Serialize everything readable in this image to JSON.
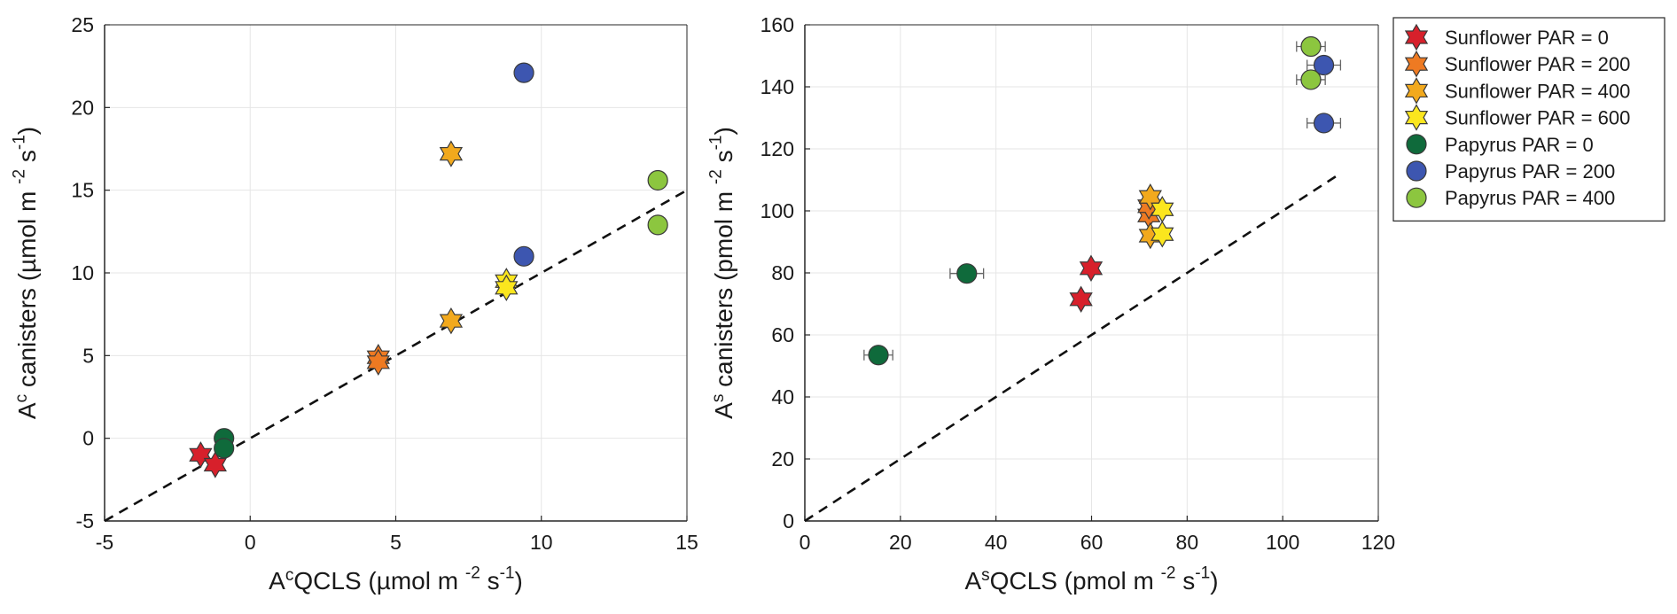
{
  "chart_data": [
    {
      "type": "scatter",
      "id": "left",
      "xlabel": "Aᶜ QCLS (µmol m⁻² s⁻¹)",
      "ylabel": "Aᶜ canisters (µmol m⁻² s⁻¹)",
      "xlabel_parts": {
        "base": "A",
        "sup": "c",
        "main": "QCLS (µmol m",
        "exp1": "-2",
        "mid": " s",
        "exp2": "-1",
        "end": ")"
      },
      "ylabel_parts": {
        "base": "A",
        "sup": "c",
        "main": " canisters (µmol m",
        "exp1": "-2",
        "mid": " s",
        "exp2": "-1",
        "end": ")"
      },
      "xlim": [
        -5,
        15
      ],
      "ylim": [
        -5,
        25
      ],
      "xticks": [
        -5,
        0,
        5,
        10,
        15
      ],
      "xtick_labels": [
        "-5",
        "0",
        "5",
        "10",
        "15"
      ],
      "yticks": [
        -5,
        0,
        5,
        10,
        15,
        20,
        25
      ],
      "ytick_labels": [
        "-5",
        "0",
        "5",
        "10",
        "15",
        "20",
        "25"
      ],
      "grid": true,
      "one_to_one_line": {
        "x": [
          -5,
          15
        ],
        "y": [
          -5,
          15
        ],
        "style": "dashed"
      },
      "series": [
        {
          "name": "Sunflower PAR = 0",
          "marker": "star",
          "color": "#d7202b",
          "points": [
            [
              -1.7,
              -1.0
            ],
            [
              -1.2,
              -1.6
            ]
          ]
        },
        {
          "name": "Sunflower PAR = 200",
          "marker": "star",
          "color": "#ee7a22",
          "points": [
            [
              4.4,
              4.9
            ],
            [
              4.4,
              4.6
            ]
          ]
        },
        {
          "name": "Sunflower PAR = 400",
          "marker": "star",
          "color": "#f2a91d",
          "points": [
            [
              6.9,
              17.2
            ],
            [
              6.9,
              7.1
            ]
          ]
        },
        {
          "name": "Sunflower PAR = 600",
          "marker": "star",
          "color": "#fbe61e",
          "points": [
            [
              8.8,
              9.5
            ],
            [
              8.8,
              9.1
            ]
          ]
        },
        {
          "name": "Papyrus PAR = 0",
          "marker": "circle",
          "color": "#0f6a3b",
          "points": [
            [
              -0.9,
              0.0
            ],
            [
              -0.9,
              -0.6
            ]
          ]
        },
        {
          "name": "Papyrus PAR = 200",
          "marker": "circle",
          "color": "#3d56b0",
          "points": [
            [
              9.4,
              22.1
            ],
            [
              9.4,
              11.0
            ]
          ]
        },
        {
          "name": "Papyrus PAR = 400",
          "marker": "circle",
          "color": "#8cc63f",
          "points": [
            [
              14.0,
              15.6
            ],
            [
              14.0,
              12.9
            ]
          ]
        }
      ]
    },
    {
      "type": "scatter",
      "id": "right",
      "xlabel": "Aˢ QCLS (pmol m⁻² s⁻¹)",
      "ylabel": "Aˢ canisters (pmol m⁻² s⁻¹)",
      "xlabel_parts": {
        "base": "A",
        "sup": "s",
        "main": "QCLS (pmol m",
        "exp1": "-2",
        "mid": " s",
        "exp2": "-1",
        "end": ")"
      },
      "ylabel_parts": {
        "base": "A",
        "sup": "s",
        "main": " canisters (pmol m",
        "exp1": "-2",
        "mid": " s",
        "exp2": "-1",
        "end": ")"
      },
      "xlim": [
        0,
        120
      ],
      "ylim": [
        0,
        160
      ],
      "xticks": [
        0,
        20,
        40,
        60,
        80,
        100,
        120
      ],
      "xtick_labels": [
        "0",
        "20",
        "40",
        "60",
        "80",
        "100",
        "120"
      ],
      "yticks": [
        0,
        20,
        40,
        60,
        80,
        100,
        120,
        140,
        160
      ],
      "ytick_labels": [
        "0",
        "20",
        "40",
        "60",
        "80",
        "100",
        "120",
        "140",
        "160"
      ],
      "grid": true,
      "one_to_one_line": {
        "x": [
          0,
          112
        ],
        "y": [
          0,
          112
        ],
        "style": "dashed"
      },
      "series": [
        {
          "name": "Sunflower PAR = 0",
          "marker": "star",
          "color": "#d7202b",
          "points": [
            [
              57.8,
              71.5,
              0
            ],
            [
              59.9,
              81.5,
              0
            ]
          ]
        },
        {
          "name": "Sunflower PAR = 200",
          "marker": "star",
          "color": "#ee7a22",
          "points": [
            [
              72.0,
              98.5,
              0
            ],
            [
              72.0,
              101.5,
              0
            ]
          ]
        },
        {
          "name": "Sunflower PAR = 400",
          "marker": "star",
          "color": "#f2a91d",
          "points": [
            [
              72.3,
              104.5,
              0
            ],
            [
              72.3,
              92.0,
              0
            ]
          ]
        },
        {
          "name": "Sunflower PAR = 600",
          "marker": "star",
          "color": "#fbe61e",
          "points": [
            [
              74.8,
              100.5,
              0
            ],
            [
              74.8,
              92.5,
              0
            ]
          ]
        },
        {
          "name": "Papyrus PAR = 0",
          "marker": "circle",
          "color": "#0f6a3b",
          "points": [
            [
              15.4,
              53.5,
              3.0
            ],
            [
              33.9,
              79.8,
              3.5
            ]
          ]
        },
        {
          "name": "Papyrus PAR = 200",
          "marker": "circle",
          "color": "#3d56b0",
          "points": [
            [
              108.6,
              147.0,
              3.5
            ],
            [
              108.6,
              128.3,
              3.5
            ]
          ]
        },
        {
          "name": "Papyrus PAR = 400",
          "marker": "circle",
          "color": "#8cc63f",
          "points": [
            [
              105.9,
              153.0,
              3.0
            ],
            [
              105.9,
              142.3,
              3.0
            ]
          ]
        }
      ],
      "errorbar_note": "horizontal error bars (x-direction), third value in each point"
    }
  ],
  "legend": {
    "placement": "right",
    "entries": [
      {
        "label": "Sunflower PAR = 0",
        "marker": "star",
        "color": "#d7202b"
      },
      {
        "label": "Sunflower PAR = 200",
        "marker": "star",
        "color": "#ee7a22"
      },
      {
        "label": "Sunflower PAR = 400",
        "marker": "star",
        "color": "#f2a91d"
      },
      {
        "label": "Sunflower PAR = 600",
        "marker": "star",
        "color": "#fbe61e"
      },
      {
        "label": "Papyrus PAR = 0",
        "marker": "circle",
        "color": "#0f6a3b"
      },
      {
        "label": "Papyrus PAR = 200",
        "marker": "circle",
        "color": "#3d56b0"
      },
      {
        "label": "Papyrus PAR = 400",
        "marker": "circle",
        "color": "#8cc63f"
      }
    ]
  }
}
